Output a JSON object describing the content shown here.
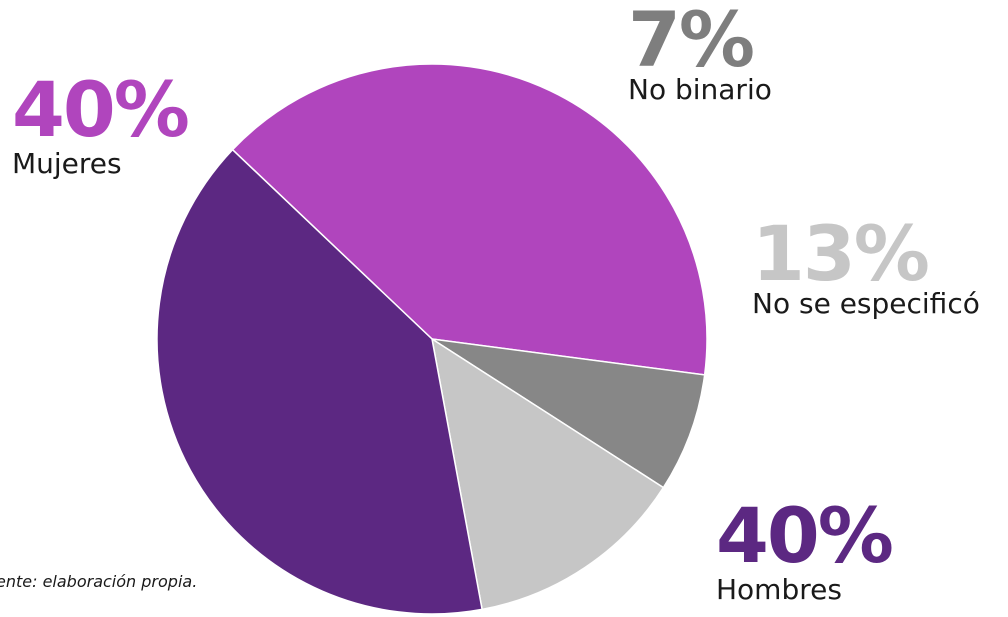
{
  "chart_data": {
    "type": "pie",
    "slices": [
      {
        "label": "Mujeres",
        "value": 40,
        "display": "40%",
        "color": "#B045BD"
      },
      {
        "label": "No binario",
        "value": 7,
        "display": "7%",
        "color": "#878787"
      },
      {
        "label": "No se especificó",
        "value": 13,
        "display": "13%",
        "color": "#C6C6C6"
      },
      {
        "label": "Hombres",
        "value": 40,
        "display": "40%",
        "color": "#5C2882"
      }
    ],
    "percent_colors": {
      "Mujeres": "#B045BD",
      "No binario": "#7E7E7E",
      "No se especificó": "#C6C6C6",
      "Hombres": "#5C2882"
    },
    "start_angle_deg": -46.5,
    "title": "",
    "legend": "none"
  },
  "footnote": "ente: elaboración propia."
}
